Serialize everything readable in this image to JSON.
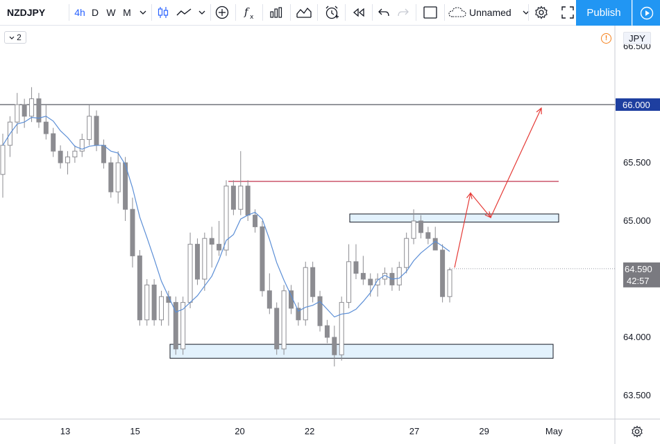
{
  "toolbar": {
    "symbol": "NZDJPY",
    "intervals": [
      {
        "label": "4h",
        "active": true
      },
      {
        "label": "D",
        "active": false
      },
      {
        "label": "W",
        "active": false
      },
      {
        "label": "M",
        "active": false
      }
    ],
    "layout_name": "Unnamed",
    "publish_label": "Publish",
    "icons": [
      "chevron-down-icon",
      "candles-icon",
      "line-style-icon",
      "add-compare-icon",
      "indicators-icon",
      "bar-templates-icon",
      "alert-icon",
      "replay-icon",
      "undo-icon",
      "redo-icon",
      "fullscreen-box-icon",
      "cloud-icon",
      "gear-icon",
      "expand-icon",
      "play-icon"
    ]
  },
  "chart": {
    "indicator_count": "2",
    "currency": "JPY",
    "colors": {
      "bull": "#8c8c91",
      "bear": "#8c8c91",
      "ma": "#5b8ed6",
      "hline": "#2a2e39",
      "resistance": "#b00020",
      "zone_fill": "#e3f2fd",
      "arrow": "#e53935",
      "price_label_bg": "#1e3fa0",
      "last_price_bg": "#7a7a80"
    }
  },
  "chart_data": {
    "type": "candlestick",
    "instrument": "NZDJPY",
    "interval": "4h",
    "y_ticks": [
      "63.500",
      "64.000",
      "64.500",
      "65.000",
      "65.500",
      "66.000",
      "66.500"
    ],
    "x_ticks": [
      "13",
      "15",
      "20",
      "22",
      "27",
      "29",
      "May"
    ],
    "ylim": [
      63.3,
      66.6
    ],
    "horizontal_line": {
      "price": 66.0,
      "label": "66.000"
    },
    "resistance_line": {
      "price": 65.34
    },
    "zones": [
      {
        "name": "support",
        "bottom": 63.82,
        "top": 63.94
      },
      {
        "name": "resistance",
        "bottom": 64.99,
        "top": 65.06
      }
    ],
    "last_price": {
      "price": 64.59,
      "label": "64.590",
      "countdown": "42:57"
    },
    "projection_arrow": [
      {
        "x": "28",
        "y": 64.6
      },
      {
        "x": "28.6",
        "y": 65.24
      },
      {
        "x": "29.1",
        "y": 65.03
      },
      {
        "x": "30.9",
        "y": 65.97
      }
    ],
    "candles": [
      [
        65.4,
        65.75,
        65.2,
        65.65
      ],
      [
        65.65,
        65.9,
        65.55,
        65.85
      ],
      [
        65.85,
        66.1,
        65.75,
        66.0
      ],
      [
        66.0,
        66.05,
        65.8,
        65.9
      ],
      [
        65.9,
        66.15,
        65.85,
        66.05
      ],
      [
        66.05,
        66.1,
        65.8,
        65.85
      ],
      [
        65.85,
        66.0,
        65.7,
        65.75
      ],
      [
        65.75,
        65.8,
        65.55,
        65.6
      ],
      [
        65.6,
        65.65,
        65.45,
        65.5
      ],
      [
        65.5,
        65.6,
        65.4,
        65.55
      ],
      [
        65.55,
        65.65,
        65.5,
        65.6
      ],
      [
        65.6,
        65.75,
        65.55,
        65.7
      ],
      [
        65.7,
        66.0,
        65.65,
        65.9
      ],
      [
        65.9,
        65.95,
        65.6,
        65.65
      ],
      [
        65.65,
        65.7,
        65.45,
        65.5
      ],
      [
        65.5,
        65.55,
        65.2,
        65.25
      ],
      [
        65.25,
        65.6,
        65.15,
        65.5
      ],
      [
        65.5,
        65.55,
        65.0,
        65.1
      ],
      [
        65.1,
        65.2,
        64.6,
        64.7
      ],
      [
        64.7,
        64.75,
        64.1,
        64.15
      ],
      [
        64.15,
        64.5,
        64.1,
        64.45
      ],
      [
        64.45,
        64.5,
        64.1,
        64.15
      ],
      [
        64.15,
        64.4,
        64.1,
        64.35
      ],
      [
        64.35,
        64.4,
        64.1,
        64.3
      ],
      [
        64.3,
        64.35,
        63.85,
        63.9
      ],
      [
        63.9,
        64.35,
        63.85,
        64.3
      ],
      [
        64.3,
        64.9,
        64.25,
        64.8
      ],
      [
        64.8,
        64.85,
        64.45,
        64.5
      ],
      [
        64.5,
        64.9,
        64.4,
        64.85
      ],
      [
        64.85,
        64.95,
        64.6,
        64.8
      ],
      [
        64.8,
        65.0,
        64.7,
        64.75
      ],
      [
        64.75,
        65.35,
        64.7,
        65.3
      ],
      [
        65.3,
        65.35,
        65.05,
        65.1
      ],
      [
        65.1,
        65.6,
        65.05,
        65.3
      ],
      [
        65.3,
        65.35,
        65.0,
        65.05
      ],
      [
        65.05,
        65.1,
        64.9,
        64.95
      ],
      [
        64.95,
        65.0,
        64.35,
        64.4
      ],
      [
        64.4,
        64.55,
        64.2,
        64.25
      ],
      [
        64.25,
        64.3,
        63.85,
        63.9
      ],
      [
        63.9,
        64.45,
        63.85,
        64.4
      ],
      [
        64.4,
        64.45,
        64.2,
        64.25
      ],
      [
        64.25,
        64.3,
        64.1,
        64.15
      ],
      [
        64.15,
        64.65,
        64.1,
        64.6
      ],
      [
        64.6,
        64.65,
        64.3,
        64.35
      ],
      [
        64.35,
        64.4,
        64.05,
        64.1
      ],
      [
        64.1,
        64.15,
        63.95,
        64.0
      ],
      [
        64.0,
        64.1,
        63.75,
        63.85
      ],
      [
        63.85,
        64.35,
        63.8,
        64.3
      ],
      [
        64.3,
        64.8,
        64.25,
        64.65
      ],
      [
        64.65,
        64.8,
        64.5,
        64.55
      ],
      [
        64.55,
        64.7,
        64.45,
        64.5
      ],
      [
        64.5,
        64.55,
        64.35,
        64.45
      ],
      [
        64.45,
        64.55,
        64.35,
        64.5
      ],
      [
        64.5,
        64.6,
        64.45,
        64.55
      ],
      [
        64.55,
        64.6,
        64.4,
        64.45
      ],
      [
        64.45,
        64.65,
        64.4,
        64.6
      ],
      [
        64.6,
        64.9,
        64.55,
        64.85
      ],
      [
        64.85,
        65.1,
        64.8,
        65.0
      ],
      [
        65.0,
        65.05,
        64.85,
        64.9
      ],
      [
        64.9,
        64.95,
        64.8,
        64.85
      ],
      [
        64.85,
        64.95,
        64.75,
        64.75
      ],
      [
        64.75,
        64.8,
        64.3,
        64.35
      ],
      [
        64.35,
        64.6,
        64.3,
        64.58
      ]
    ],
    "ma_period": 20
  }
}
